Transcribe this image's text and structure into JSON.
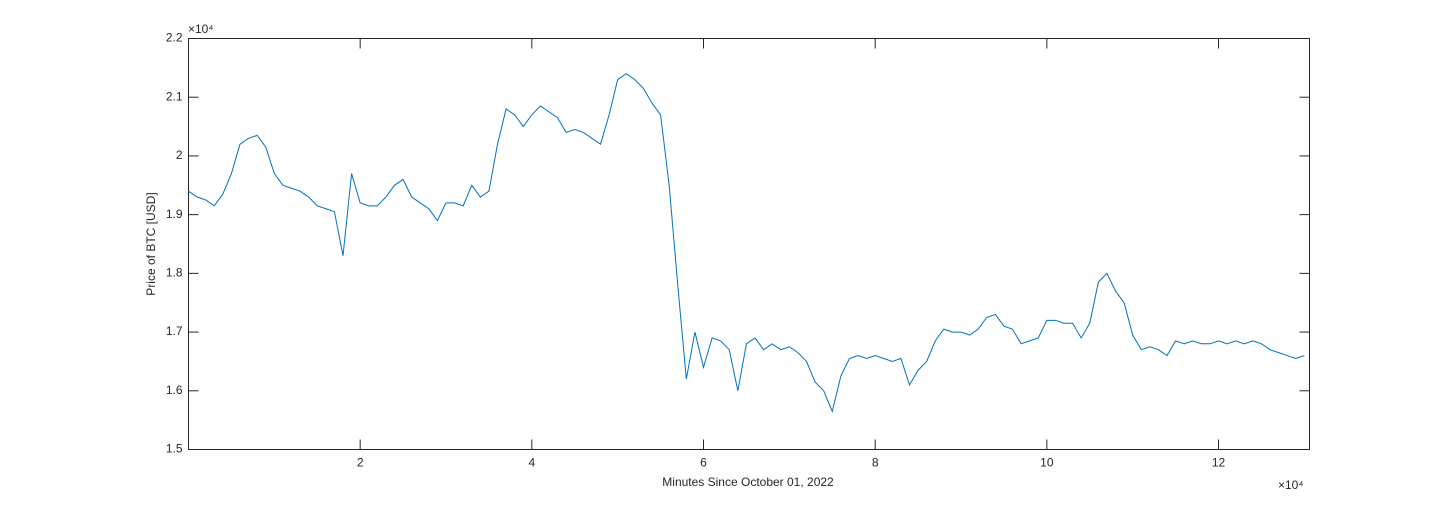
{
  "chart_data": {
    "type": "line",
    "xlabel": "Minutes Since October 01, 2022",
    "ylabel": "Price of BTC [USD]",
    "x_multiplier": "×10⁴",
    "y_multiplier": "×10⁴",
    "grid": false,
    "xlim": [
      0,
      130600
    ],
    "ylim": [
      15000,
      22000
    ],
    "xticks": [
      {
        "value": 20000,
        "label": "2"
      },
      {
        "value": 40000,
        "label": "4"
      },
      {
        "value": 60000,
        "label": "6"
      },
      {
        "value": 80000,
        "label": "8"
      },
      {
        "value": 100000,
        "label": "10"
      },
      {
        "value": 120000,
        "label": "12"
      }
    ],
    "yticks": [
      {
        "value": 15000,
        "label": "1.5"
      },
      {
        "value": 16000,
        "label": "1.6"
      },
      {
        "value": 17000,
        "label": "1.7"
      },
      {
        "value": 18000,
        "label": "1.8"
      },
      {
        "value": 19000,
        "label": "1.9"
      },
      {
        "value": 20000,
        "label": "2"
      },
      {
        "value": 21000,
        "label": "2.1"
      },
      {
        "value": 22000,
        "label": "2.2"
      }
    ],
    "x": [
      0,
      1000,
      2000,
      3000,
      4000,
      5000,
      6000,
      7000,
      8000,
      9000,
      10000,
      11000,
      12000,
      13000,
      14000,
      15000,
      16000,
      17000,
      18000,
      19000,
      20000,
      21000,
      22000,
      23000,
      24000,
      25000,
      26000,
      27000,
      28000,
      29000,
      30000,
      31000,
      32000,
      33000,
      34000,
      35000,
      36000,
      37000,
      38000,
      39000,
      40000,
      41000,
      42000,
      43000,
      44000,
      45000,
      46000,
      47000,
      48000,
      49000,
      50000,
      51000,
      52000,
      53000,
      54000,
      55000,
      56000,
      57000,
      58000,
      59000,
      60000,
      61000,
      62000,
      63000,
      64000,
      65000,
      66000,
      67000,
      68000,
      69000,
      70000,
      71000,
      72000,
      73000,
      74000,
      75000,
      76000,
      77000,
      78000,
      79000,
      80000,
      81000,
      82000,
      83000,
      84000,
      85000,
      86000,
      87000,
      88000,
      89000,
      90000,
      91000,
      92000,
      93000,
      94000,
      95000,
      96000,
      97000,
      98000,
      99000,
      100000,
      101000,
      102000,
      103000,
      104000,
      105000,
      106000,
      107000,
      108000,
      109000,
      110000,
      111000,
      112000,
      113000,
      114000,
      115000,
      116000,
      117000,
      118000,
      119000,
      120000,
      121000,
      122000,
      123000,
      124000,
      125000,
      126000,
      127000,
      128000,
      129000,
      130000
    ],
    "series": [
      {
        "color": "#0072bd",
        "values": [
          19400,
          19300,
          19250,
          19150,
          19350,
          19700,
          20200,
          20300,
          20350,
          20150,
          19700,
          19500,
          19450,
          19400,
          19300,
          19150,
          19100,
          19050,
          18300,
          19700,
          19200,
          19150,
          19150,
          19300,
          19500,
          19600,
          19300,
          19200,
          19100,
          18900,
          19200,
          19200,
          19150,
          19500,
          19300,
          19400,
          20200,
          20800,
          20700,
          20500,
          20700,
          20850,
          20750,
          20650,
          20400,
          20450,
          20400,
          20300,
          20200,
          20700,
          21300,
          21400,
          21300,
          21150,
          20900,
          20700,
          19500,
          17800,
          16200,
          17000,
          16400,
          16900,
          16850,
          16700,
          16000,
          16800,
          16900,
          16700,
          16800,
          16700,
          16750,
          16650,
          16500,
          16150,
          16000,
          15650,
          16250,
          16550,
          16600,
          16550,
          16600,
          16550,
          16500,
          16550,
          16100,
          16350,
          16500,
          16850,
          17050,
          17000,
          17000,
          16950,
          17050,
          17250,
          17300,
          17100,
          17050,
          16800,
          16850,
          16900,
          17200,
          17200,
          17150,
          17150,
          16900,
          17150,
          17850,
          18000,
          17700,
          17500,
          16950,
          16700,
          16750,
          16700,
          16600,
          16850,
          16800,
          16850,
          16800,
          16800,
          16850,
          16800,
          16850,
          16800,
          16850,
          16800,
          16700,
          16650,
          16600,
          16550,
          16600
        ]
      }
    ]
  }
}
